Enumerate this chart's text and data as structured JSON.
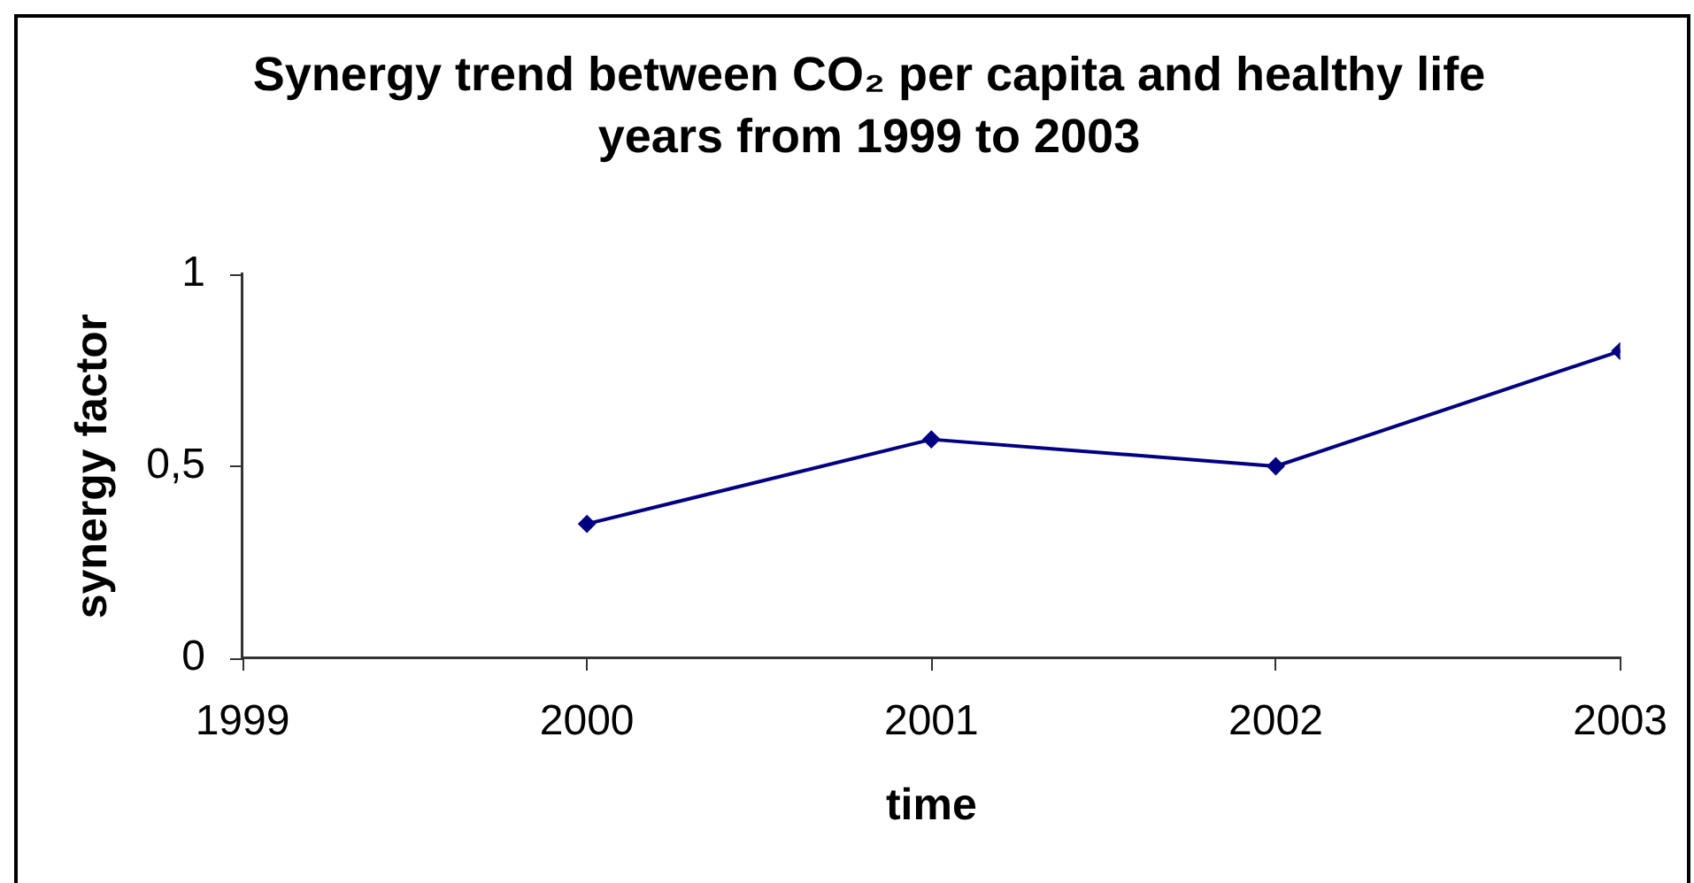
{
  "chart_data": {
    "type": "line",
    "title": "Synergy trend between CO₂ per capita and healthy life years from 1999 to 2003",
    "xlabel": "time",
    "ylabel": "synergy factor",
    "x": [
      2000,
      2001,
      2002,
      2003
    ],
    "values": [
      0.35,
      0.57,
      0.5,
      0.8
    ],
    "color": "#000080",
    "xlim": [
      1999,
      2003
    ],
    "xticks": [
      1999,
      2000,
      2001,
      2002,
      2003
    ],
    "ylim": [
      0,
      1
    ],
    "yticks": [
      0,
      {
        "value": 0.5,
        "label": "0,5"
      },
      1
    ],
    "grid": false,
    "legend": false,
    "marker": "diamond"
  }
}
